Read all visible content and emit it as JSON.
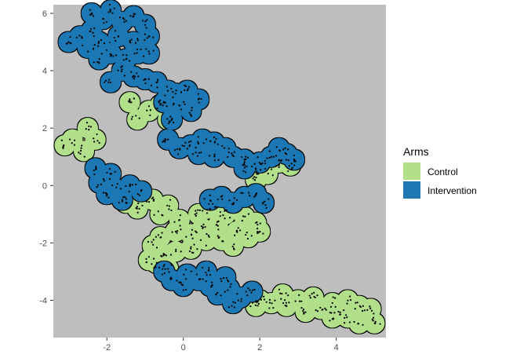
{
  "chart_data": {
    "type": "map",
    "title": "",
    "xlabel": "",
    "ylabel": "",
    "xlim": [
      -3.4,
      5.3
    ],
    "ylim": [
      -5.3,
      6.3
    ],
    "x_ticks": [
      -2,
      0,
      2,
      4
    ],
    "y_ticks": [
      -4,
      -2,
      0,
      2,
      4,
      6
    ],
    "x_tick_labels": [
      "-2",
      "0",
      "2",
      "4"
    ],
    "y_tick_labels": [
      "-4",
      "-2",
      "0",
      "2",
      "4",
      "6"
    ],
    "panel_background": "#bebebe",
    "grid": false,
    "legend": {
      "title": "Arms",
      "position": "right",
      "entries": [
        {
          "name": "Control",
          "color": "#b2df8a"
        },
        {
          "name": "Intervention",
          "color": "#1f78b4"
        }
      ]
    },
    "series": [
      {
        "name": "Control",
        "color": "#b2df8a",
        "points": [
          [
            -0.9,
            2.6
          ],
          [
            -0.6,
            2.8
          ],
          [
            -1.2,
            2.3
          ],
          [
            -2.5,
            2.0
          ],
          [
            -2.9,
            1.6
          ],
          [
            -3.1,
            1.4
          ],
          [
            -2.6,
            1.2
          ],
          [
            -2.3,
            1.6
          ],
          [
            -0.4,
            2.3
          ],
          [
            -1.4,
            2.9
          ],
          [
            1.6,
            0.9
          ],
          [
            1.9,
            0.6
          ],
          [
            2.2,
            0.4
          ],
          [
            2.5,
            0.8
          ],
          [
            2.8,
            0.7
          ],
          [
            1.9,
            0.2
          ],
          [
            -1.2,
            -0.8
          ],
          [
            -1.5,
            -0.6
          ],
          [
            -0.8,
            -0.5
          ],
          [
            -0.4,
            -0.7
          ],
          [
            -0.6,
            -1.0
          ],
          [
            -0.1,
            -1.2
          ],
          [
            0.4,
            -1.0
          ],
          [
            0.7,
            -0.8
          ],
          [
            1.1,
            -1.0
          ],
          [
            1.6,
            -1.1
          ],
          [
            1.9,
            -1.3
          ],
          [
            1.4,
            -1.6
          ],
          [
            0.9,
            -1.4
          ],
          [
            0.5,
            -1.5
          ],
          [
            0.2,
            -1.7
          ],
          [
            -0.2,
            -1.6
          ],
          [
            -0.6,
            -1.8
          ],
          [
            -0.8,
            -2.1
          ],
          [
            -0.5,
            -2.4
          ],
          [
            -0.2,
            -2.3
          ],
          [
            0.2,
            -2.2
          ],
          [
            0.6,
            -1.9
          ],
          [
            -0.7,
            -2.7
          ],
          [
            -0.4,
            -2.9
          ],
          [
            -0.9,
            -2.6
          ],
          [
            1.7,
            -1.8
          ],
          [
            1.0,
            -1.9
          ],
          [
            2.0,
            -1.6
          ],
          [
            1.3,
            -2.1
          ],
          [
            1.9,
            -4.2
          ],
          [
            2.3,
            -4.1
          ],
          [
            2.7,
            -4.2
          ],
          [
            2.6,
            -3.8
          ],
          [
            3.0,
            -4.0
          ],
          [
            3.2,
            -4.4
          ],
          [
            3.6,
            -4.3
          ],
          [
            3.9,
            -4.1
          ],
          [
            4.3,
            -4.0
          ],
          [
            4.6,
            -4.2
          ],
          [
            4.9,
            -4.3
          ],
          [
            4.3,
            -4.6
          ],
          [
            4.6,
            -4.8
          ],
          [
            5.0,
            -4.8
          ],
          [
            3.9,
            -4.6
          ],
          [
            2.0,
            -4.0
          ],
          [
            3.4,
            -3.9
          ],
          [
            4.1,
            -4.5
          ]
        ]
      },
      {
        "name": "Intervention",
        "color": "#1f78b4",
        "points": [
          [
            -3.0,
            5.0
          ],
          [
            -2.7,
            5.2
          ],
          [
            -2.4,
            5.4
          ],
          [
            -2.1,
            5.8
          ],
          [
            -2.4,
            6.0
          ],
          [
            -1.9,
            6.1
          ],
          [
            -1.6,
            5.7
          ],
          [
            -1.3,
            5.9
          ],
          [
            -1.0,
            5.6
          ],
          [
            -0.9,
            5.2
          ],
          [
            -1.3,
            5.0
          ],
          [
            -1.7,
            5.2
          ],
          [
            -2.2,
            5.0
          ],
          [
            -2.5,
            4.8
          ],
          [
            -2.2,
            4.4
          ],
          [
            -1.9,
            4.6
          ],
          [
            -1.5,
            4.4
          ],
          [
            -1.2,
            4.6
          ],
          [
            -0.9,
            4.6
          ],
          [
            -1.6,
            4.0
          ],
          [
            -1.3,
            3.8
          ],
          [
            -1.0,
            3.7
          ],
          [
            -0.7,
            3.6
          ],
          [
            -0.4,
            3.3
          ],
          [
            -0.2,
            3.2
          ],
          [
            0.1,
            3.3
          ],
          [
            -0.5,
            2.9
          ],
          [
            -0.1,
            2.8
          ],
          [
            0.4,
            3.0
          ],
          [
            -1.9,
            3.6
          ],
          [
            0.2,
            2.6
          ],
          [
            -0.3,
            2.3
          ],
          [
            -0.4,
            1.6
          ],
          [
            -0.1,
            1.3
          ],
          [
            0.2,
            1.4
          ],
          [
            0.5,
            1.6
          ],
          [
            0.8,
            1.5
          ],
          [
            1.1,
            1.3
          ],
          [
            0.4,
            1.1
          ],
          [
            0.8,
            1.0
          ],
          [
            1.3,
            1.0
          ],
          [
            1.6,
            0.9
          ],
          [
            2.0,
            0.8
          ],
          [
            2.3,
            1.0
          ],
          [
            2.5,
            1.3
          ],
          [
            2.7,
            1.1
          ],
          [
            2.9,
            0.9
          ],
          [
            1.6,
            0.6
          ],
          [
            -2.3,
            0.6
          ],
          [
            -1.9,
            0.4
          ],
          [
            -2.2,
            0.1
          ],
          [
            -1.8,
            -0.1
          ],
          [
            -1.4,
            0.0
          ],
          [
            -1.1,
            -0.2
          ],
          [
            -1.6,
            -0.5
          ],
          [
            -2.0,
            -0.3
          ],
          [
            0.7,
            -0.5
          ],
          [
            1.0,
            -0.4
          ],
          [
            1.3,
            -0.6
          ],
          [
            1.6,
            -0.4
          ],
          [
            1.9,
            -0.3
          ],
          [
            2.1,
            -0.6
          ],
          [
            -0.5,
            -3.0
          ],
          [
            -0.3,
            -3.3
          ],
          [
            0.1,
            -3.1
          ],
          [
            0.4,
            -3.3
          ],
          [
            0.7,
            -3.5
          ],
          [
            0.9,
            -3.8
          ],
          [
            1.2,
            -3.6
          ],
          [
            1.5,
            -3.9
          ],
          [
            1.8,
            -3.7
          ],
          [
            1.3,
            -4.1
          ],
          [
            0.0,
            -3.5
          ],
          [
            0.6,
            -3.0
          ],
          [
            1.1,
            -3.2
          ]
        ]
      }
    ]
  }
}
